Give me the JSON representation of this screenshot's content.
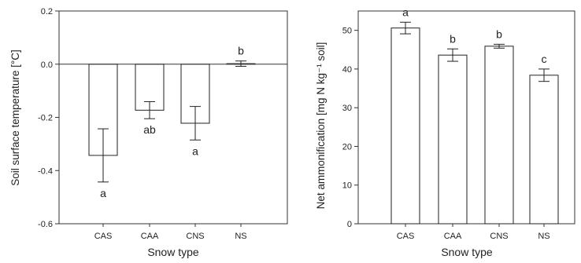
{
  "chart_data": [
    {
      "type": "bar",
      "categories": [
        "CAS",
        "CAA",
        "CNS",
        "NS"
      ],
      "values": [
        -0.343,
        -0.173,
        -0.222,
        0.002
      ],
      "errors": [
        0.1,
        0.032,
        0.063,
        0.01
      ],
      "significance": [
        "a",
        "ab",
        "a",
        "b"
      ],
      "xlabel": "Snow type",
      "ylabel": "Soil surface temperature [°C]",
      "ylim": [
        -0.6,
        0.2
      ],
      "yticks": [
        -0.6,
        -0.4,
        -0.2,
        0.0,
        0.2
      ],
      "ytick_labels": [
        "-0.6",
        "-0.4",
        "-0.2",
        "0.0",
        "0.2"
      ],
      "grid": false,
      "zero_line": true
    },
    {
      "type": "bar",
      "categories": [
        "CAS",
        "CAA",
        "CNS",
        "NS"
      ],
      "values": [
        50.6,
        43.6,
        45.9,
        38.4
      ],
      "errors": [
        1.5,
        1.6,
        0.5,
        1.6
      ],
      "significance": [
        "a",
        "b",
        "b",
        "c"
      ],
      "xlabel": "Snow type",
      "ylabel": "Net ammonification [mg N kg⁻¹ soil]",
      "ylim": [
        0,
        55
      ],
      "yticks": [
        0,
        10,
        20,
        30,
        40,
        50
      ],
      "ytick_labels": [
        "0",
        "10",
        "20",
        "30",
        "40",
        "50"
      ],
      "grid": false,
      "zero_line": false
    }
  ]
}
